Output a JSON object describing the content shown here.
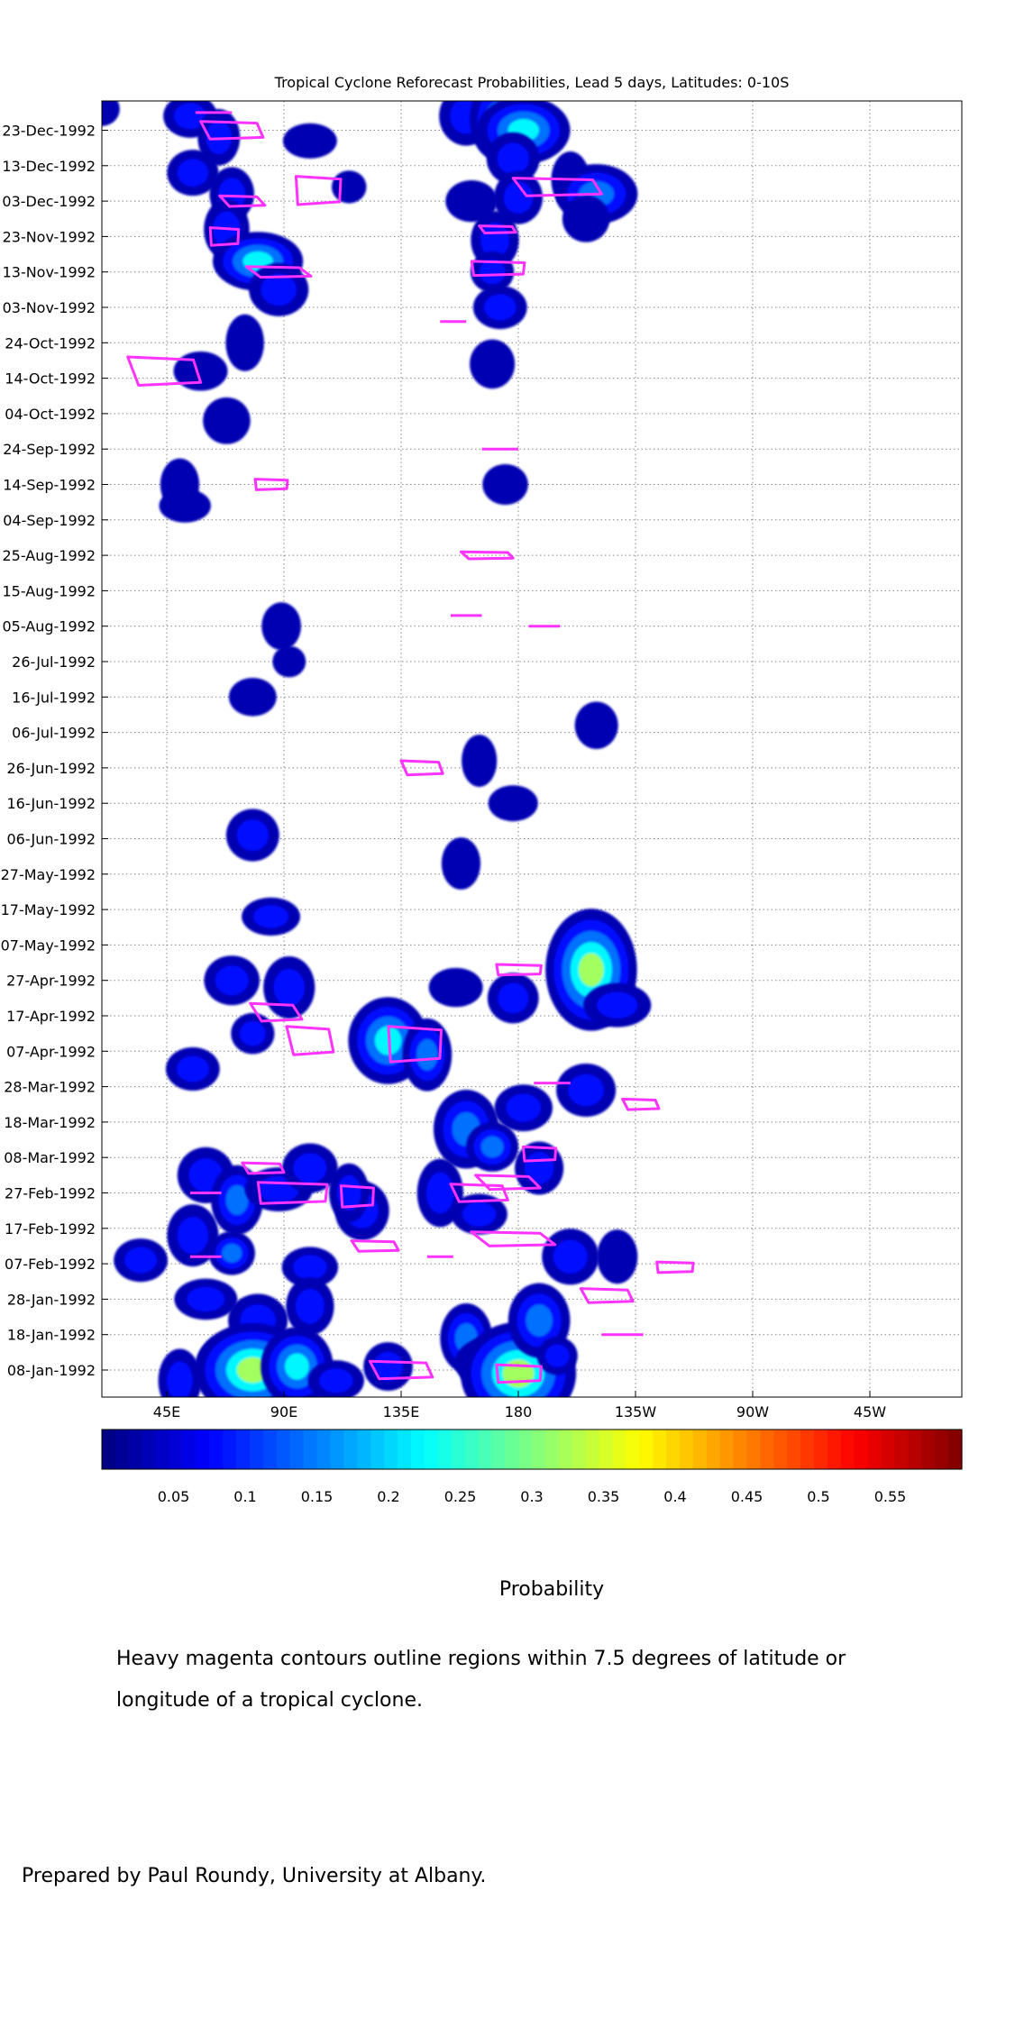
{
  "chart_data": {
    "type": "heatmap",
    "title": "Tropical Cyclone Reforecast Probabilities, Lead 5 days, Latitudes: 0-10S",
    "x_ticks": [
      "45E",
      "90E",
      "135E",
      "180",
      "135W",
      "90W",
      "45W"
    ],
    "y_ticks": [
      "08-Jan-1992",
      "18-Jan-1992",
      "28-Jan-1992",
      "07-Feb-1992",
      "17-Feb-1992",
      "27-Feb-1992",
      "08-Mar-1992",
      "18-Mar-1992",
      "28-Mar-1992",
      "07-Apr-1992",
      "17-Apr-1992",
      "27-Apr-1992",
      "07-May-1992",
      "17-May-1992",
      "27-May-1992",
      "06-Jun-1992",
      "16-Jun-1992",
      "26-Jun-1992",
      "06-Jul-1992",
      "16-Jul-1992",
      "26-Jul-1992",
      "05-Aug-1992",
      "15-Aug-1992",
      "25-Aug-1992",
      "04-Sep-1992",
      "14-Sep-1992",
      "24-Sep-1992",
      "04-Oct-1992",
      "14-Oct-1992",
      "24-Oct-1992",
      "03-Nov-1992",
      "13-Nov-1992",
      "23-Nov-1992",
      "03-Dec-1992",
      "13-Dec-1992",
      "23-Dec-1992"
    ],
    "colorbar": {
      "label": "Probability",
      "ticks": [
        "0.05",
        "0.1",
        "0.15",
        "0.2",
        "0.25",
        "0.3",
        "0.35",
        "0.4",
        "0.45",
        "0.5",
        "0.55"
      ],
      "range": [
        0,
        0.6
      ],
      "colormap": "jet"
    },
    "grid": true,
    "probability_blobs": [
      {
        "lon": 20,
        "date": "1992-12-29",
        "p": 0.07
      },
      {
        "lon": 54,
        "date": "1992-12-27",
        "p": 0.08
      },
      {
        "lon": 160,
        "date": "1992-12-27",
        "p": 0.12
      },
      {
        "lon": 172,
        "date": "1992-12-26",
        "p": 0.18
      },
      {
        "lon": 182,
        "date": "1992-12-23",
        "p": 0.25
      },
      {
        "lon": 178,
        "date": "1992-12-15",
        "p": 0.1
      },
      {
        "lon": 65,
        "date": "1992-12-21",
        "p": 0.08
      },
      {
        "lon": 100,
        "date": "1992-12-20",
        "p": 0.06
      },
      {
        "lon": 55,
        "date": "1992-12-11",
        "p": 0.08
      },
      {
        "lon": 70,
        "date": "1992-12-05",
        "p": 0.08
      },
      {
        "lon": 115,
        "date": "1992-12-07",
        "p": 0.06
      },
      {
        "lon": 162,
        "date": "1992-12-03",
        "p": 0.07
      },
      {
        "lon": 180,
        "date": "1992-12-04",
        "p": 0.09
      },
      {
        "lon": 200,
        "date": "1992-12-09",
        "p": 0.07
      },
      {
        "lon": 210,
        "date": "1992-12-05",
        "p": 0.2
      },
      {
        "lon": 206,
        "date": "1992-11-28",
        "p": 0.07
      },
      {
        "lon": 68,
        "date": "1992-11-25",
        "p": 0.1
      },
      {
        "lon": 80,
        "date": "1992-11-16",
        "p": 0.22
      },
      {
        "lon": 88,
        "date": "1992-11-08",
        "p": 0.12
      },
      {
        "lon": 171,
        "date": "1992-11-22",
        "p": 0.1
      },
      {
        "lon": 170,
        "date": "1992-11-13",
        "p": 0.12
      },
      {
        "lon": 173,
        "date": "1992-11-03",
        "p": 0.08
      },
      {
        "lon": 170,
        "date": "1992-10-18",
        "p": 0.07
      },
      {
        "lon": 75,
        "date": "1992-10-24",
        "p": 0.07
      },
      {
        "lon": 58,
        "date": "1992-10-16",
        "p": 0.07
      },
      {
        "lon": 68,
        "date": "1992-10-02",
        "p": 0.07
      },
      {
        "lon": 50,
        "date": "1992-09-14",
        "p": 0.06
      },
      {
        "lon": 52,
        "date": "1992-09-08",
        "p": 0.05
      },
      {
        "lon": 175,
        "date": "1992-09-14",
        "p": 0.05
      },
      {
        "lon": 89,
        "date": "1992-08-05",
        "p": 0.05
      },
      {
        "lon": 92,
        "date": "1992-07-26",
        "p": 0.05
      },
      {
        "lon": 78,
        "date": "1992-07-16",
        "p": 0.05
      },
      {
        "lon": 210,
        "date": "1992-07-08",
        "p": 0.06
      },
      {
        "lon": 165,
        "date": "1992-06-28",
        "p": 0.05
      },
      {
        "lon": 178,
        "date": "1992-06-16",
        "p": 0.05
      },
      {
        "lon": 78,
        "date": "1992-06-07",
        "p": 0.1
      },
      {
        "lon": 158,
        "date": "1992-05-30",
        "p": 0.06
      },
      {
        "lon": 85,
        "date": "1992-05-15",
        "p": 0.08
      },
      {
        "lon": 70,
        "date": "1992-04-27",
        "p": 0.1
      },
      {
        "lon": 92,
        "date": "1992-04-25",
        "p": 0.12
      },
      {
        "lon": 78,
        "date": "1992-04-12",
        "p": 0.12
      },
      {
        "lon": 55,
        "date": "1992-04-02",
        "p": 0.08
      },
      {
        "lon": 130,
        "date": "1992-04-10",
        "p": 0.26
      },
      {
        "lon": 145,
        "date": "1992-04-06",
        "p": 0.14
      },
      {
        "lon": 156,
        "date": "1992-04-25",
        "p": 0.07
      },
      {
        "lon": 178,
        "date": "1992-04-22",
        "p": 0.09
      },
      {
        "lon": 208,
        "date": "1992-04-30",
        "p": 0.38
      },
      {
        "lon": 218,
        "date": "1992-04-20",
        "p": 0.12
      },
      {
        "lon": 206,
        "date": "1992-03-27",
        "p": 0.12
      },
      {
        "lon": 160,
        "date": "1992-03-16",
        "p": 0.2
      },
      {
        "lon": 170,
        "date": "1992-03-11",
        "p": 0.18
      },
      {
        "lon": 182,
        "date": "1992-03-22",
        "p": 0.1
      },
      {
        "lon": 188,
        "date": "1992-03-05",
        "p": 0.09
      },
      {
        "lon": 150,
        "date": "1992-02-27",
        "p": 0.12
      },
      {
        "lon": 165,
        "date": "1992-02-21",
        "p": 0.08
      },
      {
        "lon": 60,
        "date": "1992-03-03",
        "p": 0.12
      },
      {
        "lon": 72,
        "date": "1992-02-25",
        "p": 0.14
      },
      {
        "lon": 88,
        "date": "1992-02-28",
        "p": 0.12
      },
      {
        "lon": 100,
        "date": "1992-03-05",
        "p": 0.1
      },
      {
        "lon": 55,
        "date": "1992-02-15",
        "p": 0.12
      },
      {
        "lon": 70,
        "date": "1992-02-10",
        "p": 0.14
      },
      {
        "lon": 35,
        "date": "1992-02-08",
        "p": 0.08
      },
      {
        "lon": 120,
        "date": "1992-02-22",
        "p": 0.12
      },
      {
        "lon": 115,
        "date": "1992-02-27",
        "p": 0.08
      },
      {
        "lon": 100,
        "date": "1992-02-06",
        "p": 0.08
      },
      {
        "lon": 200,
        "date": "1992-02-09",
        "p": 0.12
      },
      {
        "lon": 218,
        "date": "1992-02-09",
        "p": 0.07
      },
      {
        "lon": 60,
        "date": "1992-01-28",
        "p": 0.1
      },
      {
        "lon": 80,
        "date": "1992-01-22",
        "p": 0.12
      },
      {
        "lon": 100,
        "date": "1992-01-26",
        "p": 0.1
      },
      {
        "lon": 68,
        "date": "1992-01-10",
        "p": 0.22
      },
      {
        "lon": 78,
        "date": "1992-01-08",
        "p": 0.38
      },
      {
        "lon": 95,
        "date": "1992-01-09",
        "p": 0.22
      },
      {
        "lon": 50,
        "date": "1992-01-05",
        "p": 0.1
      },
      {
        "lon": 110,
        "date": "1992-01-05",
        "p": 0.08
      },
      {
        "lon": 130,
        "date": "1992-01-09",
        "p": 0.08
      },
      {
        "lon": 160,
        "date": "1992-01-17",
        "p": 0.14
      },
      {
        "lon": 172,
        "date": "1992-01-10",
        "p": 0.2
      },
      {
        "lon": 180,
        "date": "1992-01-07",
        "p": 0.4
      },
      {
        "lon": 188,
        "date": "1992-01-22",
        "p": 0.18
      },
      {
        "lon": 195,
        "date": "1992-01-12",
        "p": 0.1
      }
    ],
    "tc_contours": [
      {
        "lon": 63,
        "date": "1992-12-28",
        "w": 14,
        "h": 1.5
      },
      {
        "lon": 70,
        "date": "1992-12-23",
        "w": 24,
        "h": 5
      },
      {
        "lon": 103,
        "date": "1992-12-06",
        "w": 22,
        "h": 8
      },
      {
        "lon": 74,
        "date": "1992-12-03",
        "w": 14,
        "h": 3
      },
      {
        "lon": 195,
        "date": "1992-12-07",
        "w": 34,
        "h": 5
      },
      {
        "lon": 67,
        "date": "1992-11-23",
        "w": 14,
        "h": 5
      },
      {
        "lon": 88,
        "date": "1992-11-13",
        "w": 20,
        "h": 3
      },
      {
        "lon": 172,
        "date": "1992-11-25",
        "w": 14,
        "h": 2
      },
      {
        "lon": 172,
        "date": "1992-11-14",
        "w": 26,
        "h": 4
      },
      {
        "lon": 155,
        "date": "1992-10-30",
        "w": 10,
        "h": 1
      },
      {
        "lon": 44,
        "date": "1992-10-16",
        "w": 28,
        "h": 8
      },
      {
        "lon": 85,
        "date": "1992-09-14",
        "w": 16,
        "h": 3
      },
      {
        "lon": 173,
        "date": "1992-09-24",
        "w": 14,
        "h": 1.5
      },
      {
        "lon": 168,
        "date": "1992-08-25",
        "w": 20,
        "h": 2
      },
      {
        "lon": 160,
        "date": "1992-08-08",
        "w": 12,
        "h": 1
      },
      {
        "lon": 190,
        "date": "1992-08-05",
        "w": 12,
        "h": 1
      },
      {
        "lon": 143,
        "date": "1992-06-26",
        "w": 16,
        "h": 4
      },
      {
        "lon": 180,
        "date": "1992-04-30",
        "w": 22,
        "h": 3
      },
      {
        "lon": 87,
        "date": "1992-04-18",
        "w": 16,
        "h": 5
      },
      {
        "lon": 100,
        "date": "1992-04-10",
        "w": 18,
        "h": 8
      },
      {
        "lon": 140,
        "date": "1992-04-09",
        "w": 26,
        "h": 10
      },
      {
        "lon": 193,
        "date": "1992-03-29",
        "w": 14,
        "h": 1.5
      },
      {
        "lon": 227,
        "date": "1992-03-23",
        "w": 14,
        "h": 3
      },
      {
        "lon": 188,
        "date": "1992-03-09",
        "w": 16,
        "h": 4
      },
      {
        "lon": 176,
        "date": "1992-03-01",
        "w": 20,
        "h": 4
      },
      {
        "lon": 165,
        "date": "1992-02-27",
        "w": 22,
        "h": 5
      },
      {
        "lon": 93,
        "date": "1992-02-27",
        "w": 34,
        "h": 6
      },
      {
        "lon": 60,
        "date": "1992-02-27",
        "w": 12,
        "h": 1.5
      },
      {
        "lon": 82,
        "date": "1992-03-05",
        "w": 16,
        "h": 3
      },
      {
        "lon": 118,
        "date": "1992-02-26",
        "w": 16,
        "h": 6
      },
      {
        "lon": 178,
        "date": "1992-02-14",
        "w": 26,
        "h": 4
      },
      {
        "lon": 125,
        "date": "1992-02-12",
        "w": 18,
        "h": 3
      },
      {
        "lon": 150,
        "date": "1992-02-09",
        "w": 10,
        "h": 1
      },
      {
        "lon": 60,
        "date": "1992-02-09",
        "w": 12,
        "h": 1
      },
      {
        "lon": 214,
        "date": "1992-01-29",
        "w": 20,
        "h": 4
      },
      {
        "lon": 240,
        "date": "1992-02-06",
        "w": 18,
        "h": 3
      },
      {
        "lon": 220,
        "date": "1992-01-18",
        "w": 16,
        "h": 1.5
      },
      {
        "lon": 135,
        "date": "1992-01-08",
        "w": 24,
        "h": 5
      },
      {
        "lon": 180,
        "date": "1992-01-07",
        "w": 22,
        "h": 5
      }
    ]
  },
  "caption": "Heavy magenta contours outline regions within 7.5 degrees of latitude or longitude of a tropical cyclone.",
  "credit": "Prepared by Paul Roundy, University at Albany.",
  "colors": {
    "contour": "#ff33ff",
    "grid": "#888888"
  }
}
